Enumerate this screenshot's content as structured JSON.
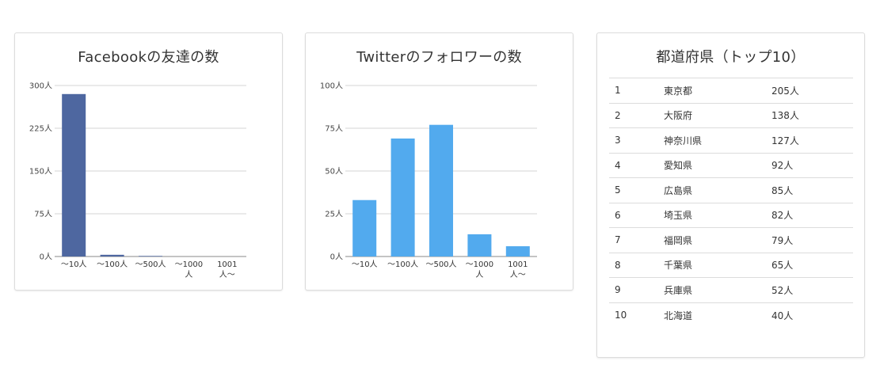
{
  "chart_data": [
    {
      "type": "bar",
      "title": "Facebookの友達の数",
      "categories": [
        "〜10人",
        "〜100人",
        "〜500人",
        "〜1000\n人",
        "1001\n人〜"
      ],
      "values": [
        285,
        3,
        1,
        0,
        0
      ],
      "ylim": [
        0,
        300
      ],
      "yticks": [
        "0人",
        "75人",
        "150人",
        "225人",
        "300人"
      ],
      "grid": true,
      "color": "#4e67a0"
    },
    {
      "type": "bar",
      "title": "Twitterのフォロワーの数",
      "categories": [
        "〜10人",
        "〜100人",
        "〜500人",
        "〜1000\n人",
        "1001\n人〜"
      ],
      "values": [
        33,
        69,
        77,
        13,
        6
      ],
      "ylim": [
        0,
        100
      ],
      "yticks": [
        "0人",
        "25人",
        "50人",
        "75人",
        "100人"
      ],
      "grid": true,
      "color": "#52aaee"
    },
    {
      "type": "table",
      "title": "都道府県（トップ10）",
      "rows": [
        [
          "1",
          "東京都",
          "205人"
        ],
        [
          "2",
          "大阪府",
          "138人"
        ],
        [
          "3",
          "神奈川県",
          "127人"
        ],
        [
          "4",
          "愛知県",
          "92人"
        ],
        [
          "5",
          "広島県",
          "85人"
        ],
        [
          "6",
          "埼玉県",
          "82人"
        ],
        [
          "7",
          "福岡県",
          "79人"
        ],
        [
          "8",
          "千葉県",
          "65人"
        ],
        [
          "9",
          "兵庫県",
          "52人"
        ],
        [
          "10",
          "北海道",
          "40人"
        ]
      ]
    }
  ]
}
